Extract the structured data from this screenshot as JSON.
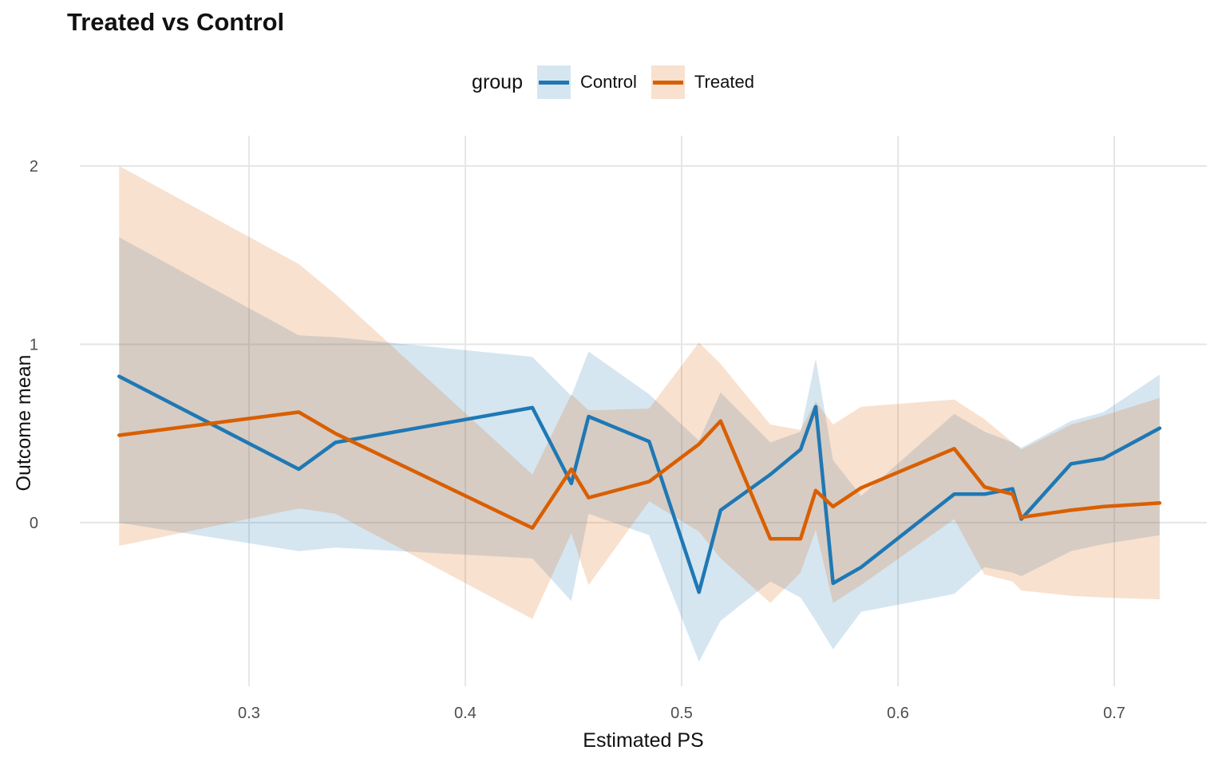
{
  "page": {
    "title": "Treated vs Control"
  },
  "legend": {
    "label": "group",
    "items": [
      {
        "label": "Control",
        "color": "#1F78B4"
      },
      {
        "label": "Treated",
        "color": "#D95F02"
      }
    ]
  },
  "chart_data": {
    "type": "line",
    "title": "Treated vs Control",
    "xlabel": "Estimated PS",
    "ylabel": "Outcome mean",
    "legend_title": "group",
    "legend_position": "top-center",
    "grid": "major-only",
    "background": "#ffffff",
    "gridline_color": "#E6E6E6",
    "tick_label_color": "#4D4D4D",
    "ribbon_opacity": 0.19,
    "x_ticks": [
      0.3,
      0.4,
      0.5,
      0.6,
      0.7
    ],
    "x_tick_labels": [
      "0.3",
      "0.4",
      "0.5",
      "0.6",
      "0.7"
    ],
    "y_ticks": [
      0,
      1,
      2
    ],
    "y_tick_labels": [
      "0",
      "1",
      "2"
    ],
    "xlim": [
      0.2218,
      0.7428
    ],
    "ylim": [
      -0.917,
      2.17
    ],
    "x": [
      0.24,
      0.323,
      0.34,
      0.431,
      0.449,
      0.457,
      0.485,
      0.508,
      0.518,
      0.541,
      0.555,
      0.562,
      0.57,
      0.583,
      0.626,
      0.64,
      0.653,
      0.657,
      0.68,
      0.695,
      0.721
    ],
    "series": [
      {
        "name": "Control",
        "color": "#1F78B4",
        "mean": [
          0.82,
          0.3,
          0.45,
          0.645,
          0.22,
          0.595,
          0.455,
          -0.39,
          0.07,
          0.27,
          0.41,
          0.65,
          -0.34,
          -0.25,
          0.16,
          0.16,
          0.19,
          0.02,
          0.33,
          0.36,
          0.53
        ],
        "lower": [
          0.0,
          -0.16,
          -0.14,
          -0.2,
          -0.44,
          0.05,
          -0.07,
          -0.78,
          -0.55,
          -0.33,
          -0.42,
          -0.55,
          -0.71,
          -0.5,
          -0.4,
          -0.25,
          -0.28,
          -0.3,
          -0.16,
          -0.12,
          -0.07
        ],
        "upper": [
          1.6,
          1.05,
          1.04,
          0.93,
          0.71,
          0.96,
          0.72,
          0.46,
          0.73,
          0.45,
          0.51,
          0.92,
          0.35,
          0.15,
          0.61,
          0.51,
          0.45,
          0.42,
          0.57,
          0.62,
          0.83
        ]
      },
      {
        "name": "Treated",
        "color": "#D95F02",
        "mean": [
          0.49,
          0.62,
          0.5,
          -0.03,
          0.3,
          0.14,
          0.23,
          0.44,
          0.57,
          -0.09,
          -0.09,
          0.18,
          0.09,
          0.195,
          0.415,
          0.2,
          0.16,
          0.03,
          0.07,
          0.09,
          0.11
        ],
        "lower": [
          -0.13,
          0.08,
          0.05,
          -0.54,
          -0.06,
          -0.35,
          0.12,
          -0.05,
          -0.2,
          -0.45,
          -0.28,
          -0.04,
          -0.45,
          -0.35,
          0.02,
          -0.29,
          -0.33,
          -0.38,
          -0.41,
          -0.42,
          -0.43
        ],
        "upper": [
          2.0,
          1.45,
          1.28,
          0.27,
          0.72,
          0.63,
          0.64,
          1.01,
          0.89,
          0.55,
          0.52,
          0.68,
          0.55,
          0.65,
          0.69,
          0.58,
          0.45,
          0.41,
          0.55,
          0.6,
          0.7
        ]
      }
    ]
  }
}
